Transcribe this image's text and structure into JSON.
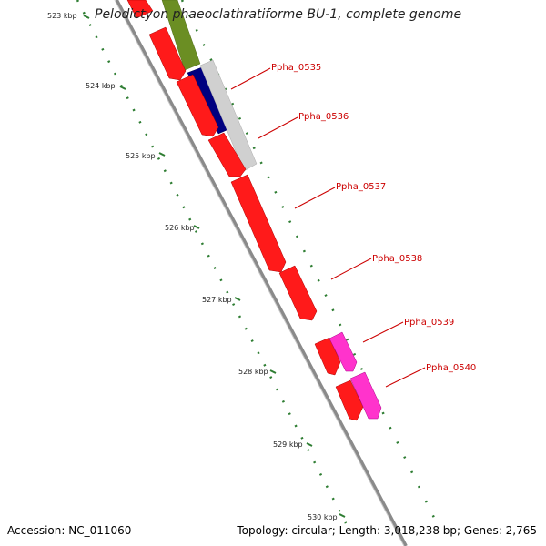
{
  "title": "Pelodictyon phaeoclathratiforme BU-1, complete genome",
  "footer": {
    "accession": "Accession: NC_011060",
    "topology": "Topology: circular; Length: 3,018,238 bp; Genes: 2,765"
  },
  "colors": {
    "gene_red": "#ff0000",
    "gene_magenta": "#ff33cc",
    "gene_olive": "#6b8e23",
    "gene_navy": "#000080",
    "gene_grey": "#c8c8c8",
    "tick_green": "#2e7d32",
    "label_red": "#cc0000",
    "backbone": "#888888"
  },
  "scale": {
    "labels": [
      "523 kbp",
      "524 kbp",
      "525 kbp",
      "526 kbp",
      "527 kbp",
      "528 kbp",
      "529 kbp",
      "530 kbp"
    ]
  },
  "genes": {
    "labels": [
      "Ppha_0535",
      "Ppha_0536",
      "Ppha_0537",
      "Ppha_0538",
      "Ppha_0539",
      "Ppha_0540"
    ]
  }
}
